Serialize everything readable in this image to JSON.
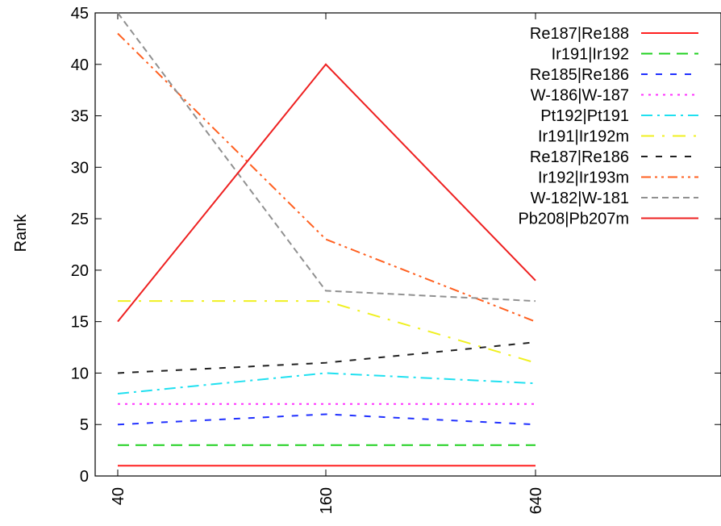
{
  "chart_data": {
    "type": "line",
    "title": "",
    "xlabel": "",
    "ylabel": "Rank",
    "x": [
      40,
      160,
      640
    ],
    "x_tick_labels": [
      "40",
      "160",
      "640"
    ],
    "ylim": [
      0,
      45
    ],
    "y_ticks": [
      0,
      5,
      10,
      15,
      20,
      25,
      30,
      35,
      40,
      45
    ],
    "grid": false,
    "legend_position": "top-right",
    "series": [
      {
        "name": "Re187|Re188",
        "values": [
          1,
          1,
          1
        ],
        "color": "#ff2020",
        "dash": "solid"
      },
      {
        "name": "Ir191|Ir192",
        "values": [
          3,
          3,
          3
        ],
        "color": "#20d020",
        "dash": "long-dash"
      },
      {
        "name": "Re185|Re186",
        "values": [
          5,
          6,
          5
        ],
        "color": "#2030ff",
        "dash": "dash"
      },
      {
        "name": "W-186|W-187",
        "values": [
          7,
          7,
          7
        ],
        "color": "#ff30ff",
        "dash": "dot"
      },
      {
        "name": "Pt192|Pt191",
        "values": [
          8,
          10,
          9
        ],
        "color": "#20e0f0",
        "dash": "dash-dot"
      },
      {
        "name": "Ir191|Ir192m",
        "values": [
          17,
          17,
          11
        ],
        "color": "#f0f020",
        "dash": "long-dash-dot"
      },
      {
        "name": "Re187|Re186",
        "values": [
          10,
          11,
          13
        ],
        "color": "#202020",
        "dash": "dash"
      },
      {
        "name": "Ir192|Ir193m",
        "values": [
          43,
          23,
          15
        ],
        "color": "#ff6020",
        "dash": "dash-dot-dot"
      },
      {
        "name": "W-182|W-181",
        "values": [
          45,
          18,
          17
        ],
        "color": "#909090",
        "dash": "short-dash"
      },
      {
        "name": "Pb208|Pb207m",
        "values": [
          15,
          40,
          19
        ],
        "color": "#ee2020",
        "dash": "solid"
      }
    ]
  }
}
